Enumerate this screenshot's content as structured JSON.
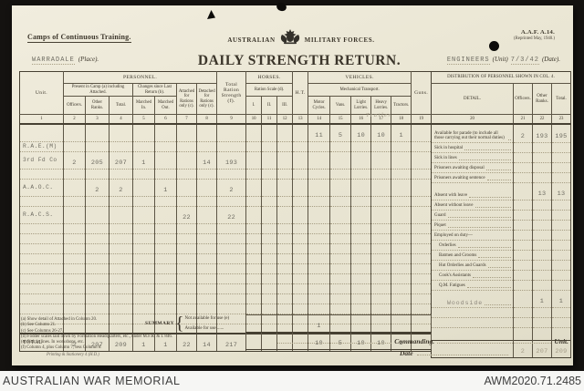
{
  "awm_bar": {
    "title": "AUSTRALIAN WAR MEMORIAL",
    "id": "AWM2020.71.2485"
  },
  "header": {
    "camps": "Camps of Continuous Training.",
    "forces_left": "AUSTRALIAN",
    "forces_right": "MILITARY FORCES.",
    "form_no": "A.A.F. A.14.",
    "reprint": "(Reprinted May, 1940.)",
    "place_value": "WARRADALE",
    "place_label": "(Place).",
    "title": "DAILY STRENGTH RETURN.",
    "unit_value": "ENGINEERS",
    "unit_label": "(Unit)",
    "date_value": "7/3/42",
    "date_label": "(Date)."
  },
  "table": {
    "unit_col": "Unit.",
    "personnel": "PERSONNEL.",
    "present": "Present in Camp (a) including Attached.",
    "changes": "Changes since Last Return (b).",
    "attached": "Attached for Rations only (c).",
    "detached": "De­tached for Rations only (c).",
    "trs": "Total Ration Strength (f).",
    "horses": "HORSES.",
    "ration_scale": "Ration Scale (d).",
    "ht": "H.T.",
    "vehicles": "VEHICLES.",
    "mech": "Mechanical Transport.",
    "guns": "Guns.",
    "sub": {
      "officers": "Officers.",
      "other": "Other Ranks.",
      "total": "Total.",
      "mi": "Marched In.",
      "mo": "Marched Out.",
      "h1": "I.",
      "h2": "II.",
      "h3": "III.",
      "mc": "Motor Cycles.",
      "vans": "Vans.",
      "ll": "Light Lorries.",
      "hl": "Heavy Lorries.",
      "trac": "Trac­tors."
    },
    "col_numbers": [
      "1",
      "2",
      "3",
      "4",
      "5",
      "6",
      "7",
      "8",
      "9",
      "10",
      "11",
      "12",
      "13",
      "14",
      "15",
      "16",
      "17",
      "18",
      "19"
    ],
    "rows": [
      {
        "cells": {
          "14": "11",
          "15": "5",
          "16": "10",
          "17": "10",
          "18": "1"
        }
      },
      {
        "unit": "R.A.E.(M)"
      },
      {
        "unit": "3rd Fd Co",
        "cells": {
          "2": "2",
          "3": "205",
          "4": "207",
          "5": "1",
          "8": "14",
          "9": "193"
        }
      },
      {},
      {
        "unit": "A.A.O.C.",
        "cells": {
          "3": "2",
          "4": "2",
          "6": "1",
          "9": "2"
        }
      },
      {},
      {
        "unit": "R.A.C.S.",
        "cells": {
          "7": "22",
          "9": "22"
        }
      },
      {},
      {},
      {},
      {},
      {},
      {},
      {},
      {},
      {},
      {},
      {}
    ],
    "total_label": "TOTAL",
    "total_cells": {
      "2": "2",
      "3": "207",
      "4": "209",
      "5": "1",
      "6": "1",
      "7": "22",
      "8": "14",
      "9": "217"
    }
  },
  "distribution": {
    "title": "DISTRIBUTION OF PERSONNEL SHOWN IN COL. 4.",
    "detail": "DETAIL.",
    "officers": "Officers.",
    "other": "Other Ranks.",
    "total": "Total.",
    "col_numbers": [
      "20",
      "21",
      "22",
      "23"
    ],
    "rows": [
      {
        "label": "Available for parade (to include all those carrying out their normal duties)",
        "o": "2",
        "r": "193",
        "t": "195",
        "tall": true
      },
      {
        "label": "Sick in hospital"
      },
      {
        "label": "Sick in lines"
      },
      {
        "label": "Prisoners awaiting disposal"
      },
      {
        "label": "Prisoners awaiting sentence"
      },
      {
        "label": "Absent with leave",
        "r": "13",
        "t": "13"
      },
      {
        "label": "Absent without leave"
      },
      {
        "label": "Guard"
      },
      {
        "label": "Piquet"
      },
      {
        "label": "Employed on duty—",
        "noleader": true
      },
      {
        "label": "Orderlies",
        "indent": true
      },
      {
        "label": "Batmen and Grooms",
        "indent": true
      },
      {
        "label": "Hut Orderlies and Guards",
        "indent": true
      },
      {
        "label": "Cook's Assistants",
        "indent": true
      },
      {
        "label": "Q.M. Fatigues",
        "indent": true
      },
      {
        "label": "Woodside",
        "typed": true,
        "r": "1",
        "t": "1"
      }
    ],
    "totals": {
      "o": "2",
      "r": "207",
      "t": "209"
    }
  },
  "summary": {
    "label": "SUMMARY",
    "row1": "Not available for use (e)",
    "row2": "Available for use ......",
    "row1_cells": {
      "14": "1"
    },
    "row2_cells": {
      "14": "10",
      "15": "5",
      "16": "10",
      "17": "10",
      "18": "1"
    }
  },
  "footnotes": [
    "(a) Show detail of Attached in Column 20.",
    "(b) See Column 21.",
    "(c) See Columns 26-27.",
    "(d) Fodder scales laid down by Formation Headquarters, etc., under M.F.R. & I. 846.",
    "(e) Sick in lines.  In workshops, etc.",
    "(f) Column 4, plus Column 7, less Column 8."
  ],
  "signature": {
    "commanding": "Commanding.",
    "unit": "Unit.",
    "date": "Date"
  },
  "imprint": "Printing & Stationery 4 (H.D.)",
  "annotations": {
    "trailer": "Trailer"
  }
}
